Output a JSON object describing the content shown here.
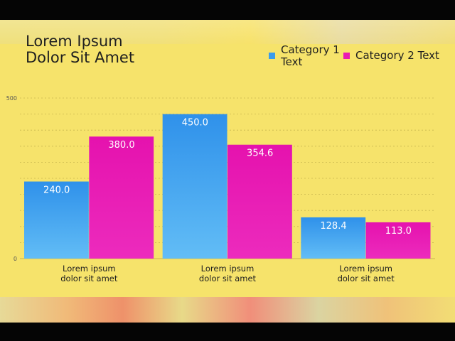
{
  "chart_data": {
    "type": "bar",
    "title": "Lorem Ipsum Dolor Sit Amet",
    "title_lines": [
      "Lorem Ipsum",
      "Dolor Sit Amet"
    ],
    "categories": [
      "Lorem ipsum\ndolor sit amet",
      "Lorem ipsum\ndolor sit amet",
      "Lorem ipsum\ndolor sit amet"
    ],
    "series": [
      {
        "name": "Category 1 Text",
        "legend_lines": [
          "Category 1",
          "Text"
        ],
        "values": [
          240.0,
          450.0,
          128.4
        ],
        "data_labels": [
          "240.0",
          "450.0",
          "128.4"
        ],
        "color": "#3a9cec"
      },
      {
        "name": "Category 2 Text",
        "legend_lines": [
          "Category 2 Text"
        ],
        "values": [
          380.0,
          354.6,
          113.0
        ],
        "data_labels": [
          "380.0",
          "354.6",
          "113.0"
        ],
        "color": "#e91bb3"
      }
    ],
    "ylim": [
      0,
      500
    ],
    "yticks": [
      "0",
      "500"
    ],
    "xlabel": "",
    "ylabel": "",
    "grid": true,
    "legend_position": "top-right"
  },
  "colors": {
    "background": "#f6e36b",
    "series1": "#3a9cec",
    "series2": "#e91bb3",
    "text": "#1f1f1f"
  }
}
